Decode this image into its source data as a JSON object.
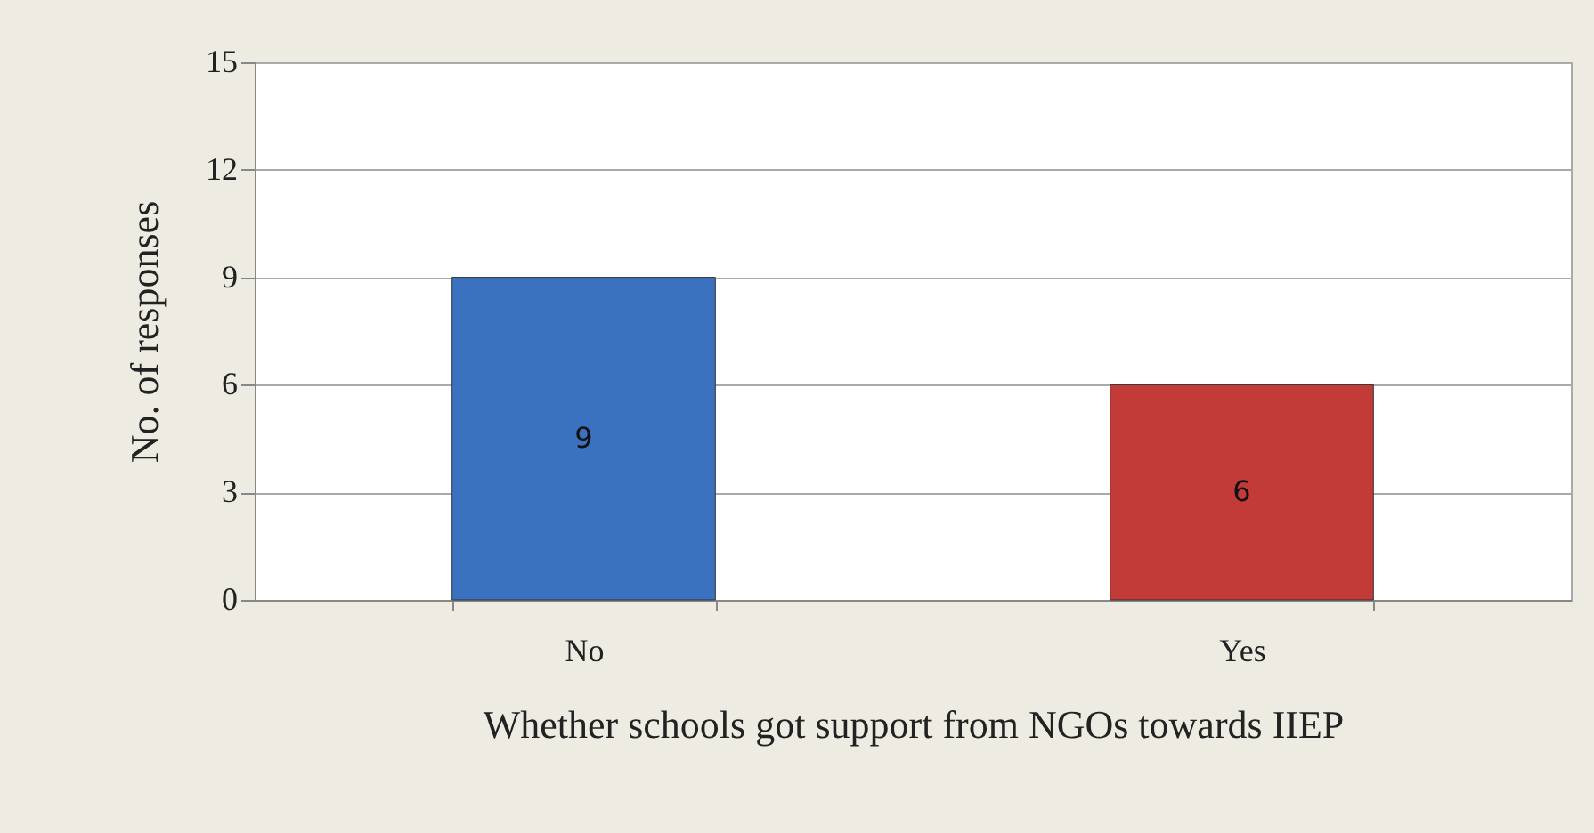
{
  "chart_data": {
    "type": "bar",
    "xlabel": "Whether schools got support from NGOs towards IIEP",
    "ylabel": "No. of responses",
    "categories": [
      "No",
      "Yes"
    ],
    "values": [
      9,
      6
    ],
    "colors": [
      "#3b72c0",
      "#c23b38"
    ],
    "ylim": [
      0,
      15
    ],
    "yticks": [
      0,
      3,
      6,
      9,
      12,
      15
    ],
    "grid": "y",
    "data_labels": true
  }
}
